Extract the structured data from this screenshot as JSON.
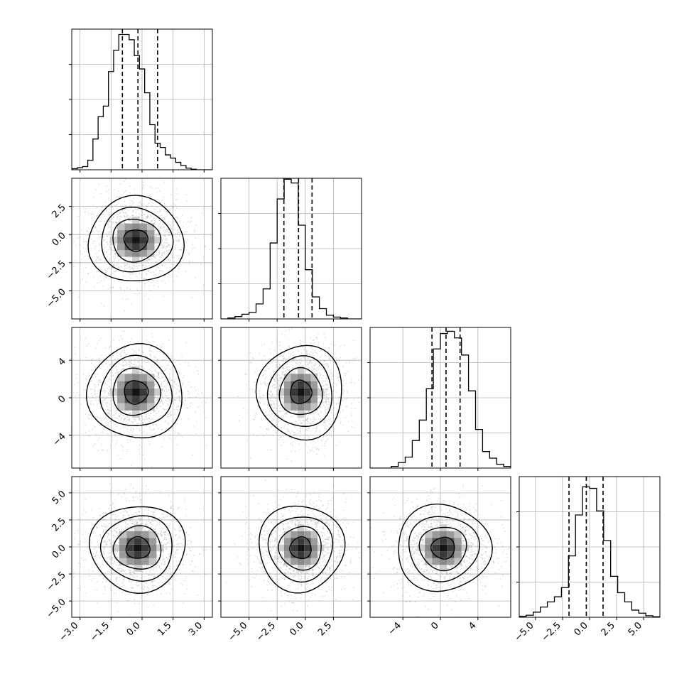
{
  "chart_data": {
    "type": "corner",
    "title": "",
    "n_params": 4,
    "colors": {
      "line": "#000000",
      "grid": "#b0b0b0",
      "points": "#808080"
    },
    "params": [
      {
        "range": [
          -3.4,
          3.4
        ],
        "ticks": [
          -3.0,
          -1.5,
          0.0,
          1.5,
          3.0
        ],
        "tick_labels": [
          "−3.0",
          "−1.5",
          "0.0",
          "1.5",
          "3.0"
        ],
        "quantiles": [
          -0.95,
          -0.2,
          0.75
        ],
        "bin_width": 0.25,
        "hist": [
          2,
          4,
          6,
          18,
          58,
          100,
          120,
          185,
          225,
          255,
          255,
          245,
          215,
          190,
          145,
          85,
          50,
          42,
          28,
          22,
          14,
          8,
          3,
          1,
          0,
          0,
          0
        ],
        "hist_max": 265,
        "center": [
          -0.3,
          -0.5
        ]
      },
      {
        "range": [
          -7.5,
          5.0
        ],
        "ticks": [
          -5.0,
          -2.5,
          0.0,
          2.5
        ],
        "tick_labels": [
          "−5.0",
          "−2.5",
          "0.0",
          "2.5"
        ],
        "quantiles": [
          -1.9,
          -0.6,
          0.6
        ],
        "bin_width": 0.625,
        "hist": [
          0,
          2,
          5,
          10,
          14,
          32,
          64,
          162,
          256,
          298,
          290,
          200,
          105,
          47,
          22,
          8,
          4,
          2,
          0,
          0
        ],
        "hist_max": 300,
        "center": [
          -0.3,
          0.8
        ]
      },
      {
        "range": [
          -7.5,
          7.5
        ],
        "ticks": [
          -4,
          0,
          4
        ],
        "tick_labels": [
          "−4",
          "0",
          "4"
        ],
        "quantiles": [
          -0.9,
          0.6,
          2.1
        ],
        "bin_width": 0.75,
        "hist": [
          0,
          0,
          0,
          3,
          10,
          20,
          50,
          87,
          144,
          216,
          244,
          248,
          236,
          205,
          140,
          70,
          30,
          18,
          7,
          3
        ],
        "hist_max": 255,
        "center": [
          0.2,
          -0.2
        ]
      },
      {
        "range": [
          -6.5,
          6.5
        ],
        "ticks": [
          -5.0,
          -2.5,
          0.0,
          2.5,
          5.0
        ],
        "tick_labels": [
          "−5.0",
          "−2.5",
          "0.0",
          "2.5",
          "5.0"
        ],
        "quantiles": [
          -1.9,
          -0.3,
          1.25
        ],
        "bin_width": 0.65,
        "hist": [
          2,
          4,
          10,
          20,
          30,
          40,
          58,
          120,
          200,
          255,
          252,
          208,
          150,
          80,
          48,
          30,
          14,
          8,
          3,
          1
        ],
        "hist_max": 275,
        "center": [
          -0.3,
          -0.2
        ]
      }
    ],
    "pairs": [
      {
        "x": 0,
        "y": 1,
        "center": [
          -0.3,
          -0.5
        ],
        "spread": [
          1.15,
          1.9
        ]
      },
      {
        "x": 0,
        "y": 2,
        "center": [
          -0.3,
          0.6
        ],
        "spread": [
          1.15,
          2.5
        ]
      },
      {
        "x": 1,
        "y": 2,
        "center": [
          -0.4,
          0.6
        ],
        "spread": [
          1.9,
          2.5
        ]
      },
      {
        "x": 0,
        "y": 3,
        "center": [
          -0.2,
          -0.1
        ],
        "spread": [
          1.15,
          2.0
        ]
      },
      {
        "x": 1,
        "y": 3,
        "center": [
          -0.4,
          -0.1
        ],
        "spread": [
          1.9,
          2.0
        ]
      },
      {
        "x": 2,
        "y": 3,
        "center": [
          0.3,
          -0.1
        ],
        "spread": [
          2.5,
          2.0
        ]
      }
    ]
  }
}
